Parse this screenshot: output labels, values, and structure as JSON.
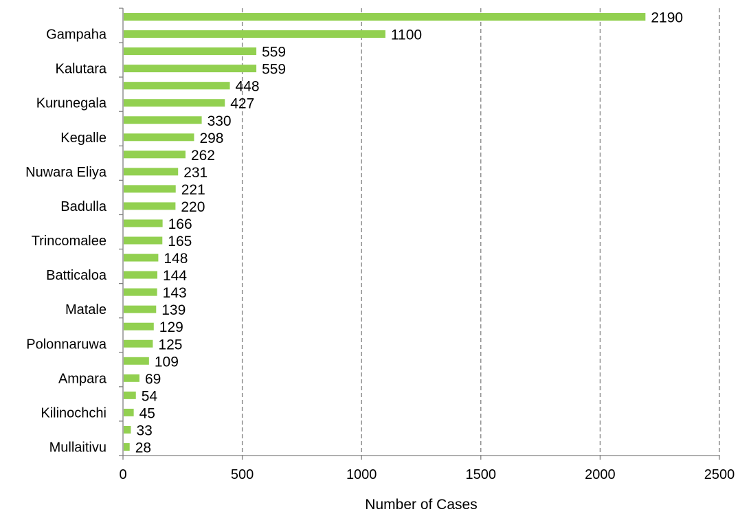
{
  "chart_data": {
    "type": "bar",
    "orientation": "horizontal",
    "xlabel": "Number of Cases",
    "xlim": [
      0,
      2500
    ],
    "xticks": [
      0,
      500,
      1000,
      1500,
      2000,
      2500
    ],
    "grid": "vertical-dashed",
    "bar_color": "#92d050",
    "categories": [
      "",
      "Gampaha",
      "",
      "Kalutara",
      "",
      "Kurunegala",
      "",
      "Kegalle",
      "",
      "Nuwara Eliya",
      "",
      "Badulla",
      "",
      "Trincomalee",
      "",
      "Batticaloa",
      "",
      "Matale",
      "",
      "Polonnaruwa",
      "",
      "Ampara",
      "",
      "Kilinochchi",
      "",
      "Mullaitivu"
    ],
    "values": [
      2190,
      1100,
      559,
      559,
      448,
      427,
      330,
      298,
      262,
      231,
      221,
      220,
      166,
      165,
      148,
      144,
      143,
      139,
      129,
      125,
      109,
      69,
      54,
      45,
      33,
      28
    ]
  }
}
